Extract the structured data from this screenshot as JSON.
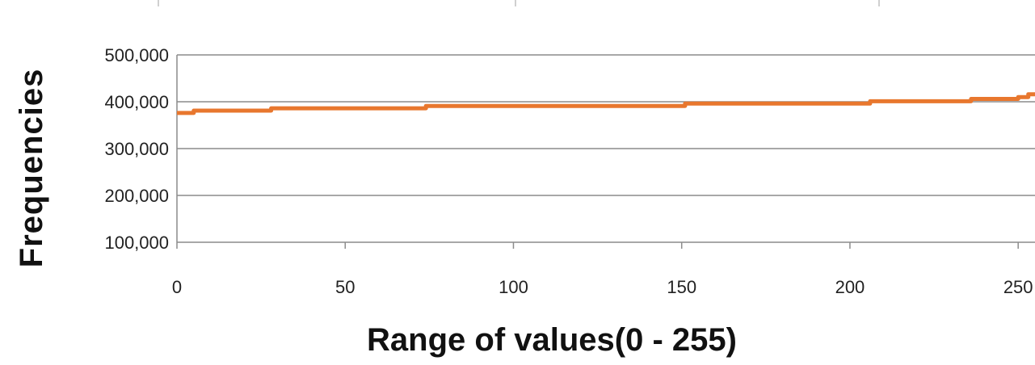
{
  "chart_data": {
    "type": "line",
    "xlabel": "Range of values(0 - 255)",
    "ylabel": "Frequencies",
    "xlim": [
      0,
      255
    ],
    "ylim": [
      100000,
      500000
    ],
    "x_ticks": [
      0,
      50,
      100,
      150,
      200,
      250
    ],
    "x_tick_labels": [
      "0",
      "50",
      "100",
      "150",
      "200",
      "250"
    ],
    "y_ticks": [
      100000,
      200000,
      300000,
      400000,
      500000
    ],
    "y_tick_labels": [
      "100,000",
      "200,000",
      "300,000",
      "400,000",
      "500,000"
    ],
    "grid": true,
    "legend": "none",
    "series": [
      {
        "color": "#e8772e",
        "x": [
          0,
          5,
          5,
          28,
          28,
          74,
          74,
          151,
          151,
          206,
          206,
          236,
          236,
          250,
          250,
          253,
          253,
          255
        ],
        "y": [
          376000,
          376000,
          381000,
          381000,
          386000,
          386000,
          391000,
          391000,
          396000,
          396000,
          401000,
          401000,
          406000,
          406000,
          410000,
          410000,
          416000,
          416000
        ]
      }
    ]
  }
}
